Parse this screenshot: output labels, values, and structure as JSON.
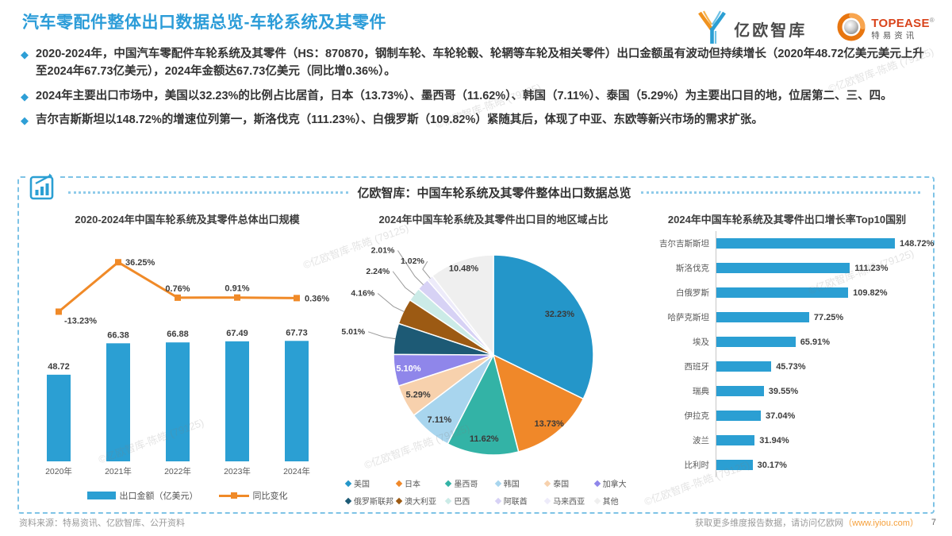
{
  "header": {
    "title": "汽车零配件整体出口数据总览-车轮系统及其零件",
    "logos": {
      "yiou": {
        "name": "亿欧智库"
      },
      "topease": {
        "line1": "TOPEASE",
        "reg": "®",
        "line2": "特易资讯"
      }
    }
  },
  "bullets": [
    {
      "marker": "◆",
      "text": "2020-2024年，中国汽车零配件车轮系统及其零件（HS：870870，钢制车轮、车轮轮毂、轮辋等车轮及相关零件）出口金额虽有波动但持续增长（2020年48.72亿美元美元上升至2024年67.73亿美元），2024年金额达67.73亿美元（同比增0.36%）。"
    },
    {
      "marker": "◆",
      "text": "2024年主要出口市场中，美国以32.23%的比例占比居首，日本（13.73%）、墨西哥（11.62%）、韩国（7.11%）、泰国（5.29%）为主要出口目的地，位居第二、三、四。"
    },
    {
      "marker": "◆",
      "text": "吉尔吉斯斯坦以148.72%的增速位列第一，斯洛伐克（111.23%）、白俄罗斯（109.82%）紧随其后，体现了中亚、东欧等新兴市场的需求扩张。"
    }
  ],
  "panel": {
    "title": "亿欧智库：中国车轮系统及其零件整体出口数据总览"
  },
  "chart_data": [
    {
      "type": "bar",
      "subtype": "bar-line-combo",
      "title": "2020-2024年中国车轮系统及其零件总体出口规模",
      "categories": [
        "2020年",
        "2021年",
        "2022年",
        "2023年",
        "2024年"
      ],
      "series": [
        {
          "name": "出口金额（亿美元）",
          "type": "bar",
          "color": "#2B9FD3",
          "values": [
            48.72,
            66.38,
            66.88,
            67.49,
            67.73
          ]
        },
        {
          "name": "同比变化",
          "type": "line",
          "color": "#F08A28",
          "unit": "%",
          "values": [
            -13.23,
            36.25,
            0.76,
            0.91,
            0.36
          ]
        }
      ],
      "legend_position": "bottom",
      "grid": false
    },
    {
      "type": "pie",
      "title": "2024年中国车轮系统及其零件出口目的地区域占比",
      "unit": "%",
      "start": "12-oclock-clockwise",
      "legend_position": "bottom",
      "slices": [
        {
          "label": "美国",
          "value": 32.23,
          "color": "#2496C9"
        },
        {
          "label": "日本",
          "value": 13.73,
          "color": "#F08829"
        },
        {
          "label": "墨西哥",
          "value": 11.62,
          "color": "#33B3A6"
        },
        {
          "label": "韩国",
          "value": 7.11,
          "color": "#A8D5EE"
        },
        {
          "label": "泰国",
          "value": 5.29,
          "color": "#F7D1AD"
        },
        {
          "label": "加拿大",
          "value": 5.1,
          "color": "#8F86EA"
        },
        {
          "label": "俄罗斯联邦",
          "value": 5.01,
          "color": "#1D5A75"
        },
        {
          "label": "澳大利亚",
          "value": 4.16,
          "color": "#9C5A13"
        },
        {
          "label": "巴西",
          "value": 2.24,
          "color": "#CBEBE7"
        },
        {
          "label": "阿联酋",
          "value": 2.01,
          "color": "#D7D2F5"
        },
        {
          "label": "马来西亚",
          "value": 1.02,
          "color": "#EDEBFA"
        },
        {
          "label": "其他",
          "value": 10.48,
          "color": "#EFEFEF"
        }
      ]
    },
    {
      "type": "bar",
      "orientation": "horizontal",
      "title": "2024年中国车轮系统及其零件出口增长率Top10国别",
      "unit": "%",
      "color": "#2B9FD3",
      "xlim": [
        0,
        160
      ],
      "categories": [
        "吉尔吉斯斯坦",
        "斯洛伐克",
        "白俄罗斯",
        "哈萨克斯坦",
        "埃及",
        "西班牙",
        "瑞典",
        "伊拉克",
        "波兰",
        "比利时"
      ],
      "values": [
        148.72,
        111.23,
        109.82,
        77.25,
        65.91,
        45.73,
        39.55,
        37.04,
        31.94,
        30.17
      ]
    }
  ],
  "footer": {
    "source": "资料来源：特易资讯、亿欧智库、公开资料",
    "right_text": "获取更多维度报告数据，请访问亿欧网",
    "paren_open": "（",
    "link": "www.iyiou.com",
    "paren_close": "）",
    "page_number": "7"
  },
  "watermark": "©亿欧智库-陈皓 (79125)",
  "colors": {
    "accent_blue": "#2B9CD8",
    "chart_blue": "#2B9FD3",
    "accent_orange": "#F08A28",
    "panel_border": "#7EC3E6"
  }
}
